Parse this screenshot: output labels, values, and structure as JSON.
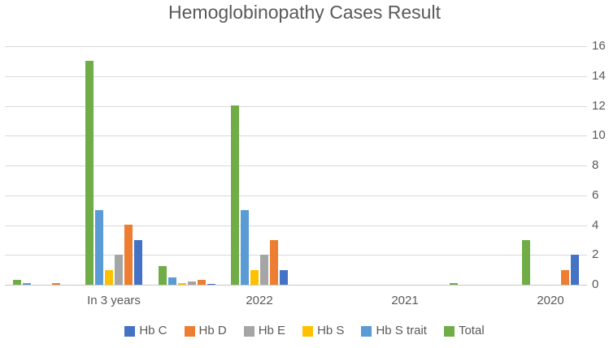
{
  "title": "Hemoglobinopathy Cases Result",
  "text_color": "#595959",
  "gridline_color": "#d9d9d9",
  "chart_data": {
    "type": "bar",
    "title": "Hemoglobinopathy Cases Result",
    "categories": [
      "",
      "In 3 years",
      "",
      "2022",
      "",
      "2021",
      "",
      "2020"
    ],
    "series": [
      {
        "name": "Hb C",
        "color": "#4472C4",
        "values": [
          0,
          3,
          0.05,
          1,
          0,
          0,
          0,
          2
        ]
      },
      {
        "name": "Hb D",
        "color": "#ED7D31",
        "values": [
          0.1,
          4,
          0.35,
          3,
          0,
          0,
          0,
          1
        ]
      },
      {
        "name": "Hb E",
        "color": "#A5A5A5",
        "values": [
          0,
          2,
          0.2,
          2,
          0,
          0,
          0,
          0
        ]
      },
      {
        "name": "Hb S",
        "color": "#FFC000",
        "values": [
          0,
          1,
          0.1,
          1,
          0,
          0,
          0,
          0
        ]
      },
      {
        "name": "Hb S trait",
        "color": "#5B9BD5",
        "values": [
          0.1,
          5,
          0.5,
          5,
          0,
          0,
          0,
          0
        ]
      },
      {
        "name": "Total",
        "color": "#70AD47",
        "values": [
          0.3,
          15,
          1.25,
          12,
          0,
          0,
          0.1,
          3
        ]
      }
    ],
    "xlabel": "",
    "ylabel": "",
    "ylim": [
      0,
      16
    ],
    "ytick_step": 2,
    "yaxis_side": "right",
    "grid": true,
    "legend_position": "bottom",
    "cluster_draw_order": "reverse-of-legend"
  }
}
